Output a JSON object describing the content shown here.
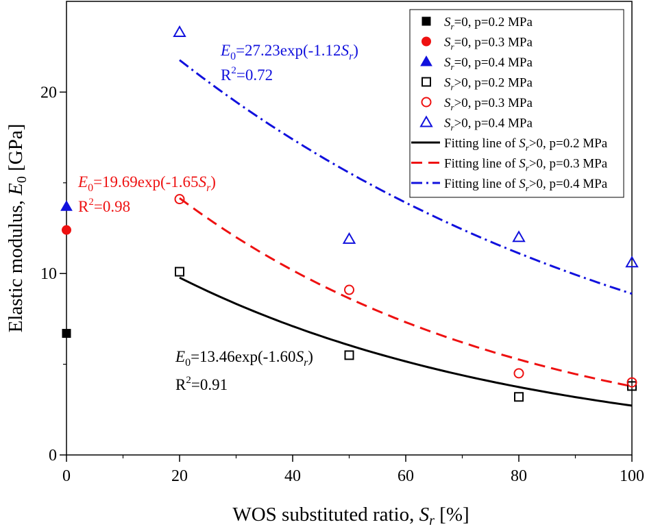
{
  "chart_data": {
    "type": "scatter",
    "xlabel_main": "WOS substituted ratio, ",
    "xlabel_var": "S",
    "xlabel_sub": "r",
    "xlabel_unit": " [%]",
    "ylabel_main": "Elastic modulus, ",
    "ylabel_var": "E",
    "ylabel_sub": "0",
    "ylabel_unit": " [GPa]",
    "xlim": [
      0,
      100
    ],
    "ylim": [
      0,
      25
    ],
    "x_major_ticks": [
      0,
      20,
      40,
      60,
      80,
      100
    ],
    "x_tick_labels": [
      "0",
      "20",
      "40",
      "60",
      "80",
      "100"
    ],
    "y_major_ticks": [
      0,
      10,
      20
    ],
    "y_tick_labels": [
      "0",
      "10",
      "20"
    ],
    "colors": {
      "black": "#000000",
      "red": "#ee1111",
      "blue": "#1111dd"
    },
    "series": [
      {
        "name": "Sr=0, p=0.2 MPa",
        "legend_label": "=0, p=0.2 MPa",
        "marker": "square",
        "filled": true,
        "color": "#000000",
        "x": [
          0
        ],
        "y": [
          6.7
        ]
      },
      {
        "name": "Sr=0, p=0.3 MPa",
        "legend_label": "=0, p=0.3 MPa",
        "marker": "circle",
        "filled": true,
        "color": "#ee1111",
        "x": [
          0
        ],
        "y": [
          12.4
        ]
      },
      {
        "name": "Sr=0, p=0.4 MPa",
        "legend_label": "=0, p=0.4 MPa",
        "marker": "triangle",
        "filled": true,
        "color": "#1111dd",
        "x": [
          0
        ],
        "y": [
          13.7
        ]
      },
      {
        "name": "Sr>0, p=0.2 MPa",
        "legend_label": ">0, p=0.2 MPa",
        "marker": "square",
        "filled": false,
        "color": "#000000",
        "x": [
          20,
          50,
          80,
          100
        ],
        "y": [
          10.1,
          5.5,
          3.2,
          3.8
        ]
      },
      {
        "name": "Sr>0, p=0.3 MPa",
        "legend_label": ">0, p=0.3 MPa",
        "marker": "circle",
        "filled": false,
        "color": "#ee1111",
        "x": [
          20,
          50,
          80,
          100
        ],
        "y": [
          14.1,
          9.1,
          4.5,
          4.0
        ]
      },
      {
        "name": "Sr>0, p=0.4 MPa",
        "legend_label": ">0, p=0.4 MPa",
        "marker": "triangle",
        "filled": false,
        "color": "#1111dd",
        "x": [
          20,
          50,
          80,
          100
        ],
        "y": [
          23.3,
          11.9,
          12.0,
          10.6
        ]
      }
    ],
    "fits": [
      {
        "name": "Fitting line of Sr>0, p=0.2 MPa",
        "legend_label": ">0, p=0.2 MPa",
        "style": "solid",
        "color": "#000000",
        "a": 13.46,
        "b": -1.6,
        "x_range": [
          20,
          100
        ]
      },
      {
        "name": "Fitting line of Sr>0, p=0.3 MPa",
        "legend_label": ">0, p=0.3 MPa",
        "style": "dash",
        "color": "#ee1111",
        "a": 19.69,
        "b": -1.65,
        "x_range": [
          20,
          100
        ]
      },
      {
        "name": "Fitting line of Sr>0, p=0.4 MPa",
        "legend_label": ">0, p=0.4 MPa",
        "style": "dashdot",
        "color": "#1111dd",
        "a": 27.23,
        "b": -1.12,
        "x_range": [
          20,
          100
        ]
      }
    ],
    "legend": {
      "position": "top-right",
      "sr_var": "S",
      "sr_sub": "r",
      "fit_prefix": "Fitting line of "
    },
    "annotations": [
      {
        "id": "black",
        "color": "#000000",
        "eq_var": "E",
        "eq_sub": "0",
        "eq_mid": "=13.46exp(-1.60",
        "eq_tail_var": "S",
        "eq_tail_sub": "r",
        "eq_close": ")",
        "r2_base": "R",
        "r2_sup": "2",
        "r2_value": "=0.91"
      },
      {
        "id": "red",
        "color": "#ee1111",
        "eq_var": "E",
        "eq_sub": "0",
        "eq_mid": "=19.69exp(-1.65",
        "eq_tail_var": "S",
        "eq_tail_sub": "r",
        "eq_close": ")",
        "r2_base": "R",
        "r2_sup": "2",
        "r2_value": "=0.98"
      },
      {
        "id": "blue",
        "color": "#1111dd",
        "eq_var": "E",
        "eq_sub": "0",
        "eq_mid": "=27.23exp(-1.12",
        "eq_tail_var": "S",
        "eq_tail_sub": "r",
        "eq_close": ")",
        "r2_base": "R",
        "r2_sup": "2",
        "r2_value": "=0.72"
      }
    ]
  }
}
